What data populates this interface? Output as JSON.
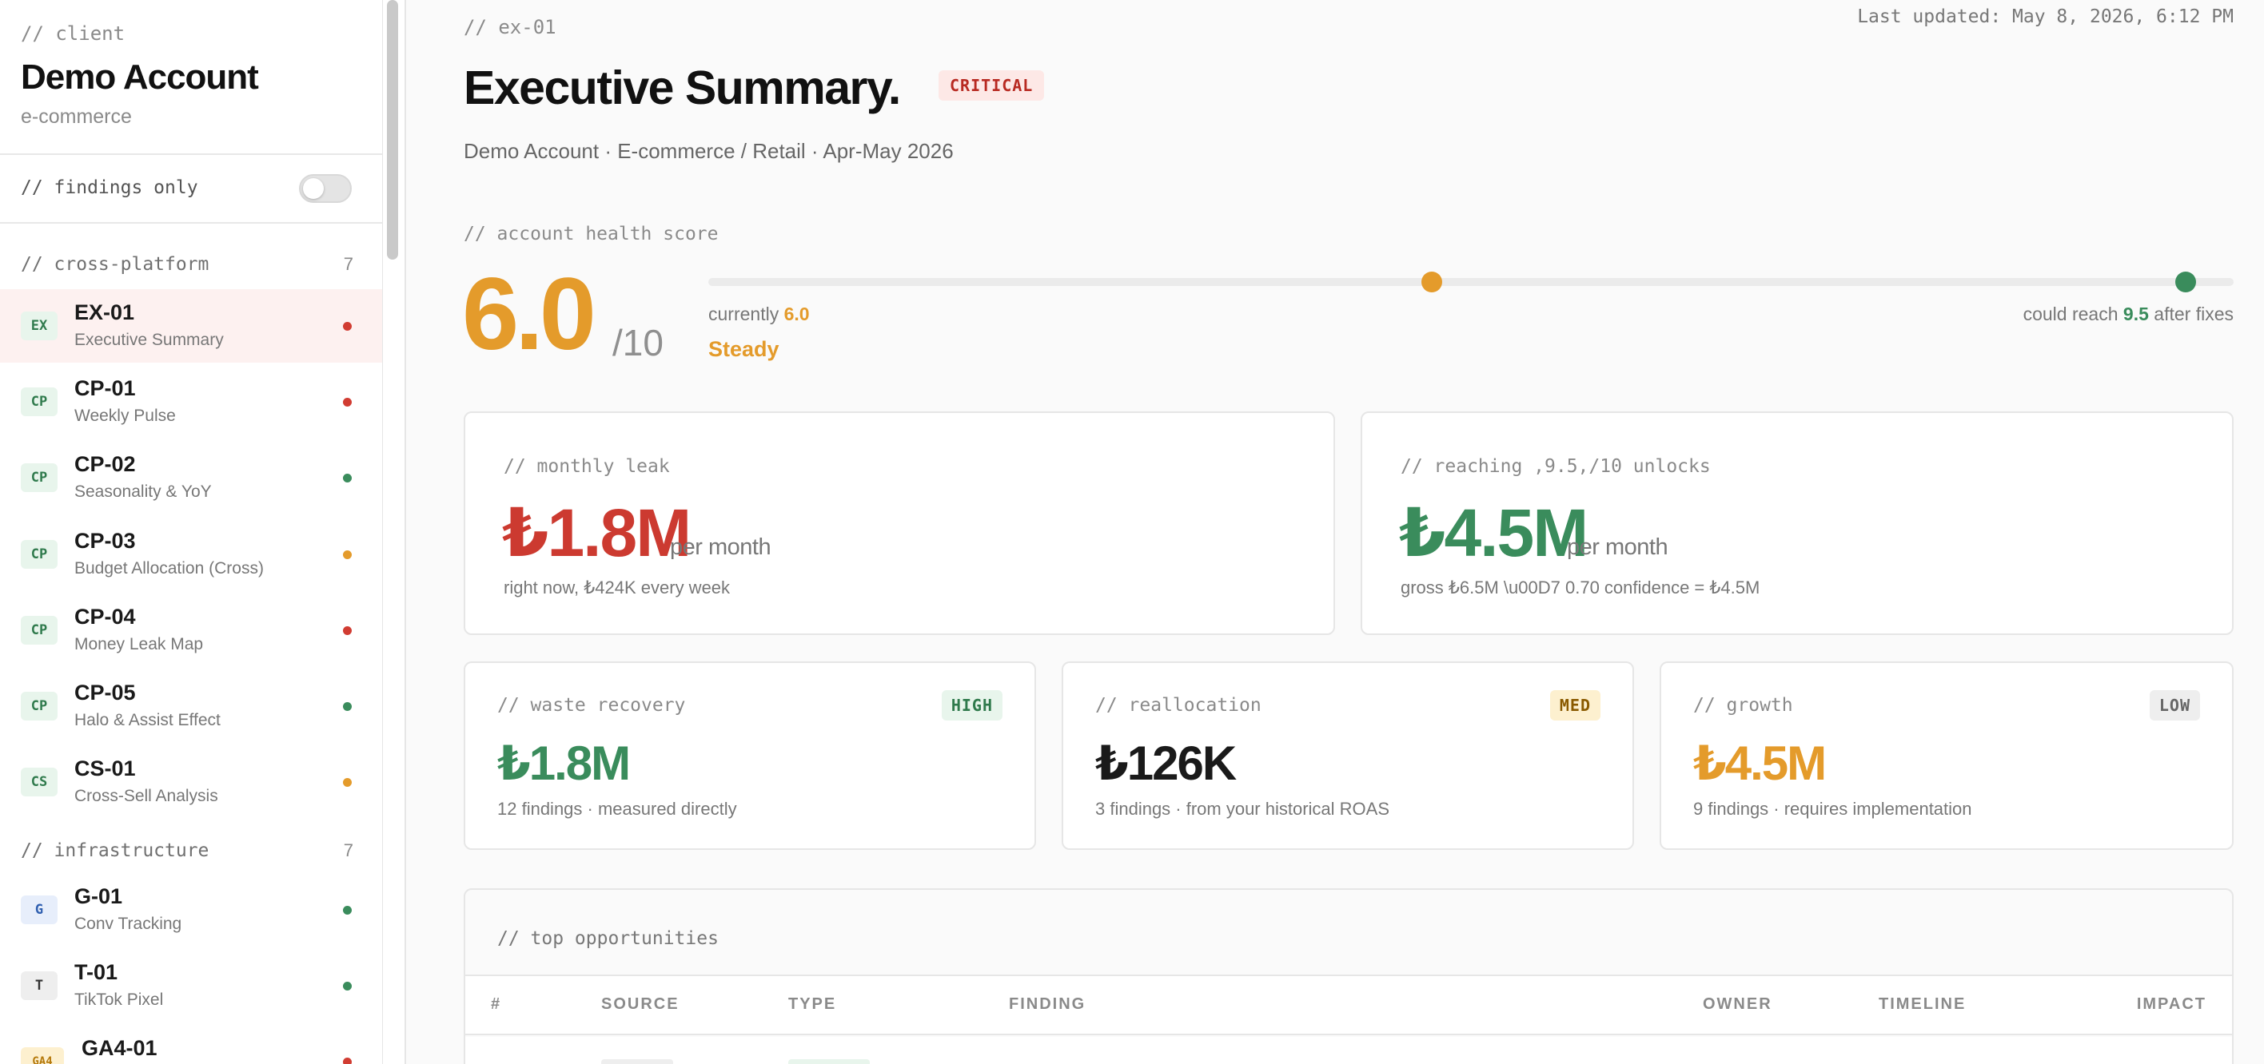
{
  "sidebar": {
    "client_label": "// client",
    "account_name": "Demo Account",
    "vertical": "e-commerce",
    "findings_toggle_label": "// findings only",
    "findings_toggle_on": false,
    "groups": [
      {
        "label": "// cross-platform",
        "count": "7"
      },
      {
        "label": "// infrastructure",
        "count": "7"
      }
    ],
    "items": [
      {
        "badge": "EX",
        "code": "EX-01",
        "label": "Executive Summary",
        "status": "red",
        "active": true
      },
      {
        "badge": "CP",
        "code": "CP-01",
        "label": "Weekly Pulse",
        "status": "red"
      },
      {
        "badge": "CP",
        "code": "CP-02",
        "label": "Seasonality & YoY",
        "status": "green"
      },
      {
        "badge": "CP",
        "code": "CP-03",
        "label": "Budget Allocation (Cross)",
        "status": "orange"
      },
      {
        "badge": "CP",
        "code": "CP-04",
        "label": "Money Leak Map",
        "status": "red"
      },
      {
        "badge": "CP",
        "code": "CP-05",
        "label": "Halo & Assist Effect",
        "status": "green"
      },
      {
        "badge": "CS",
        "code": "CS-01",
        "label": "Cross-Sell Analysis",
        "status": "orange"
      },
      {
        "badge": "G",
        "code": "G-01",
        "label": "Conv Tracking",
        "status": "green"
      },
      {
        "badge": "T",
        "code": "T-01",
        "label": "TikTok Pixel",
        "status": "green"
      },
      {
        "badge": "GA4",
        "code": "GA4-01",
        "label": "",
        "status": "red"
      }
    ]
  },
  "header": {
    "breadcrumb": "// ex-01",
    "last_updated": "Last updated: May 8, 2026, 6:12 PM",
    "title": "Executive Summary.",
    "severity_badge": "CRITICAL",
    "subtitle": "Demo Account · E-commerce / Retail · Apr-May 2026"
  },
  "health": {
    "label": "// account health score",
    "score": "6.0",
    "denominator": "/10",
    "score_value": 6.0,
    "potential_value": 9.5,
    "max": 10,
    "currently_prefix": "currently ",
    "currently_value": "6.0",
    "status": "Steady",
    "reach_prefix": "could reach ",
    "reach_value": "9.5",
    "reach_suffix": " after fixes"
  },
  "summary_cards": [
    {
      "label": "// monthly leak",
      "value": "₺1.8M",
      "unit": "per month",
      "note": "right now, ₺424K every week",
      "color": "#cc3a30"
    },
    {
      "label": "// reaching ,9.5,/10 unlocks",
      "value": "₺4.5M",
      "unit": "per month",
      "note": "gross ₺6.5M \\u00D7 0.70 confidence = ₺4.5M",
      "color": "#3a8c5c"
    }
  ],
  "category_cards": [
    {
      "label": "// waste recovery",
      "tag": "HIGH",
      "value": "₺1.8M",
      "note": "12 findings · measured directly",
      "color": "#3a8c5c",
      "tag_bg": "#e8f5ec",
      "tag_fg": "#2f7a4c"
    },
    {
      "label": "// reallocation",
      "tag": "MED",
      "value": "₺126K",
      "note": "3 findings · from your historical ROAS",
      "color": "#1a1a1a",
      "tag_bg": "#fdf0cf",
      "tag_fg": "#8a5a00"
    },
    {
      "label": "// growth",
      "tag": "LOW",
      "value": "₺4.5M",
      "note": "9 findings · requires implementation",
      "color": "#e49b2b",
      "tag_bg": "#eeeeee",
      "tag_fg": "#666666"
    }
  ],
  "opportunities": {
    "title": "// top opportunities",
    "columns": [
      "#",
      "SOURCE",
      "TYPE",
      "FINDING",
      "OWNER",
      "TIMELINE",
      "IMPACT"
    ]
  },
  "colors": {
    "red": "#d13c32",
    "green": "#3a8c5c",
    "orange": "#e49b2b",
    "accent": "#e49b2b"
  }
}
